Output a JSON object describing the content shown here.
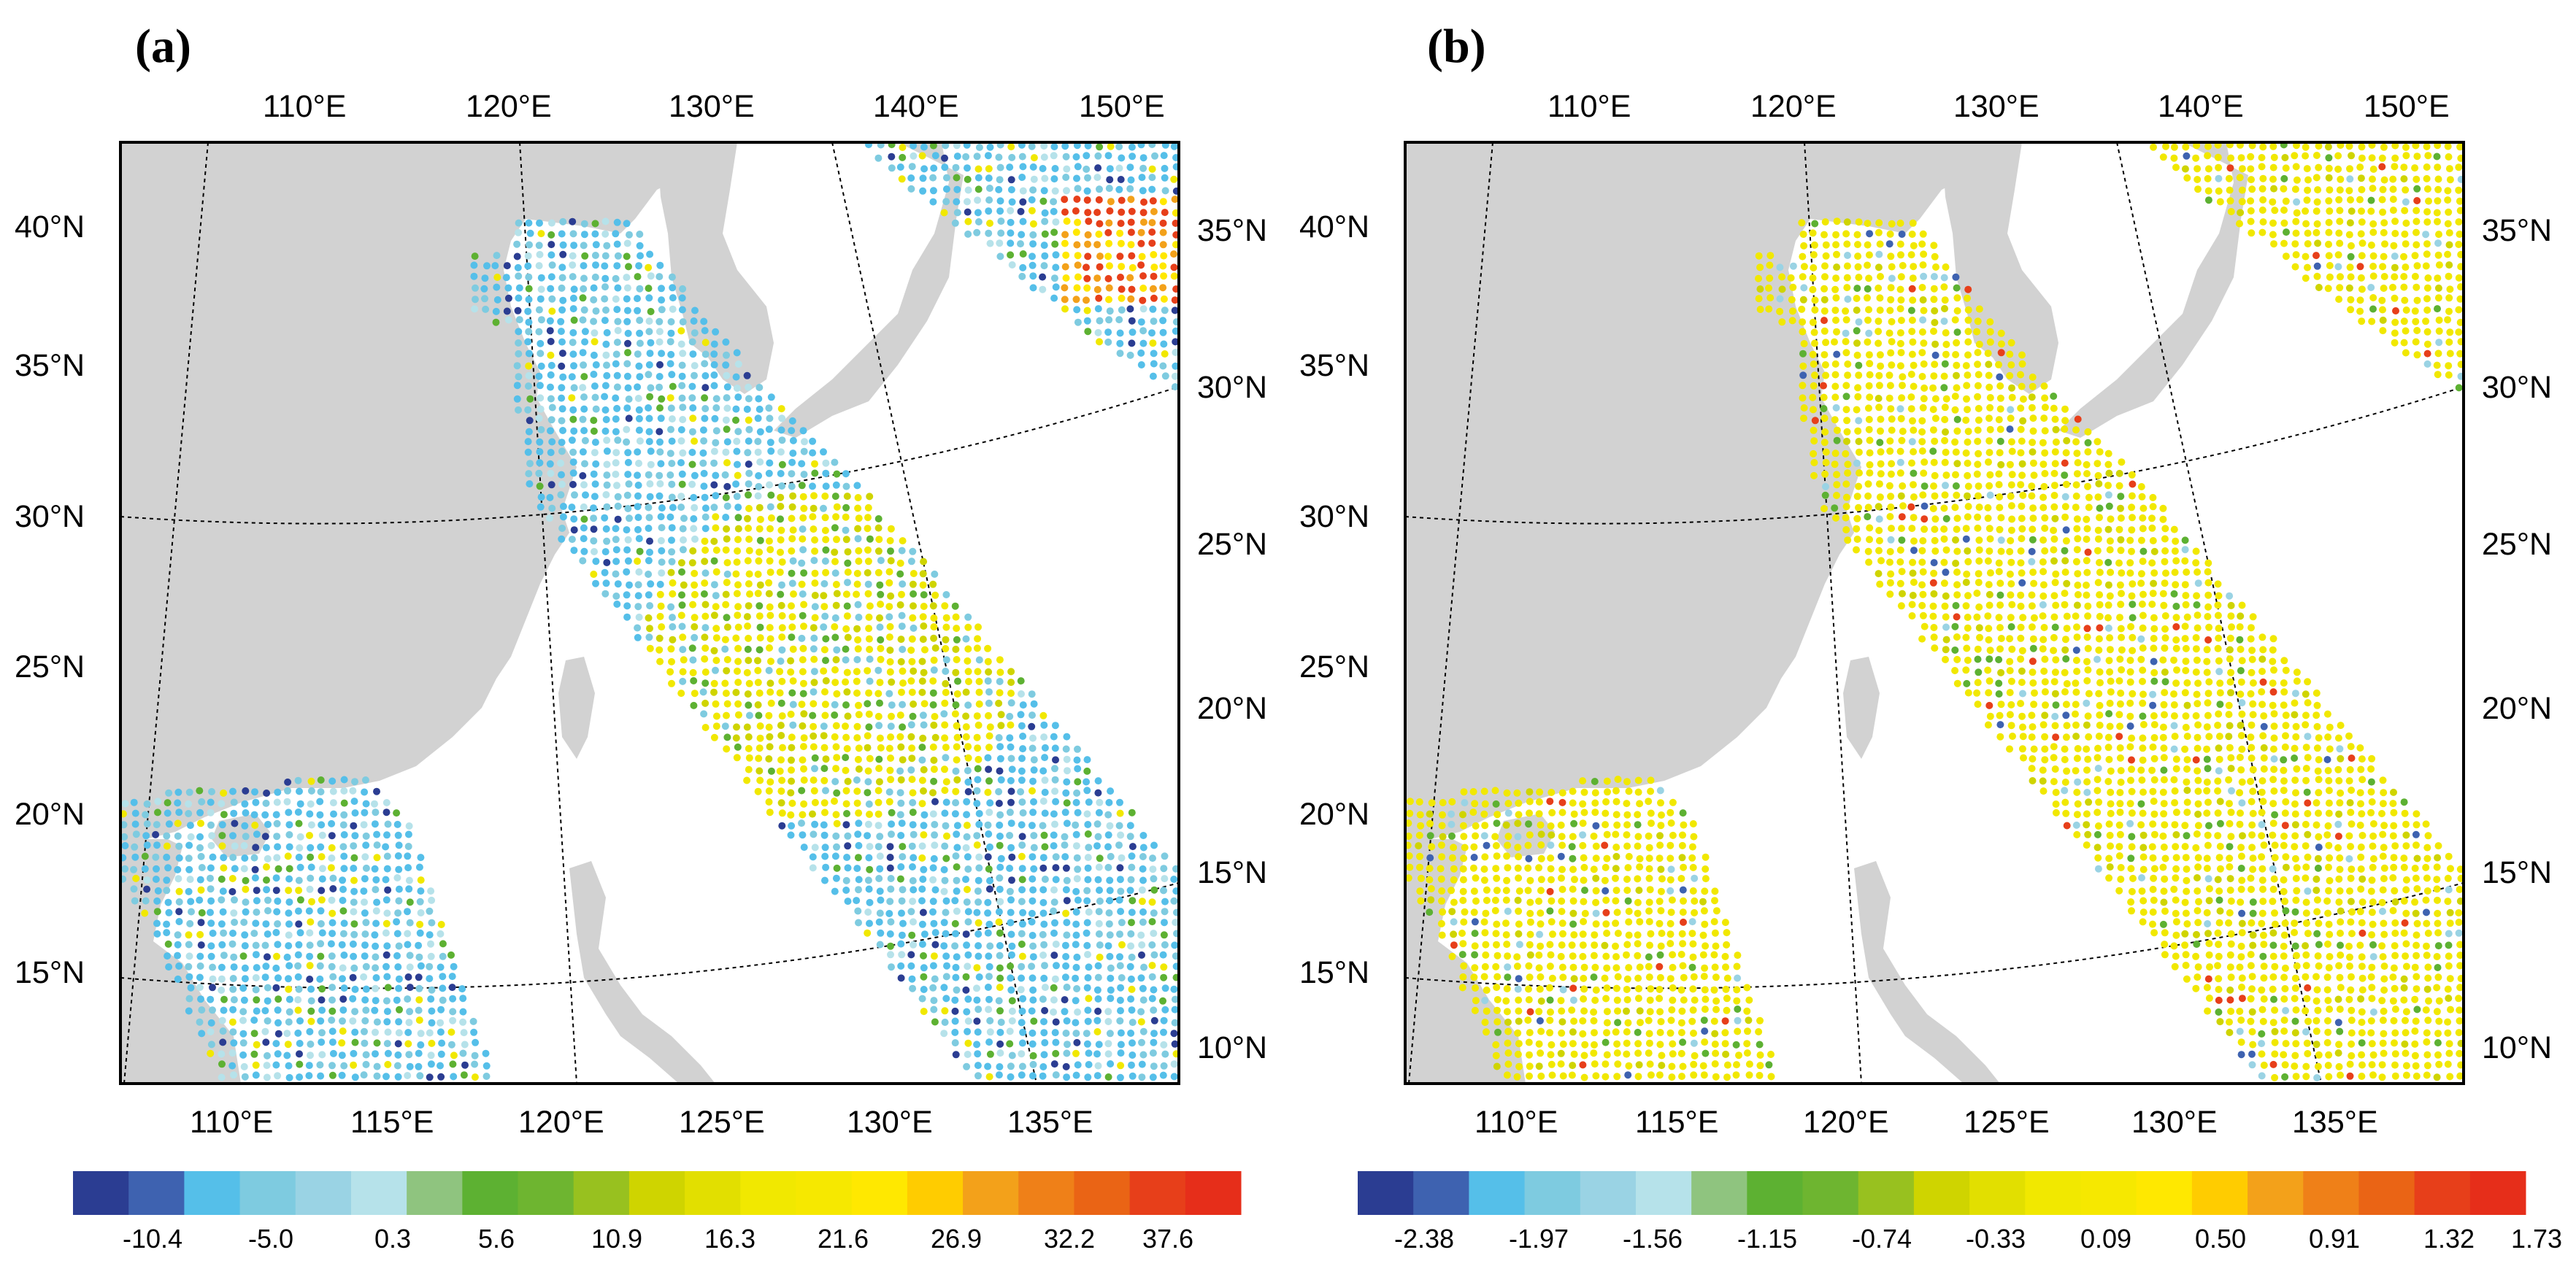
{
  "panels": [
    {
      "label": "(a)",
      "top_lon_labels": [
        "110°E",
        "120°E",
        "130°E",
        "140°E",
        "150°E"
      ],
      "bottom_lon_labels": [
        "110°E",
        "115°E",
        "120°E",
        "125°E",
        "130°E",
        "135°E"
      ],
      "left_lat_labels": [
        "40°N",
        "35°N",
        "30°N",
        "25°N",
        "20°N",
        "15°N"
      ],
      "right_lat_labels": [
        "35°N",
        "30°N",
        "25°N",
        "20°N",
        "15°N",
        "10°N"
      ],
      "colorbar_labels": [
        "-10.4",
        "-5.0",
        "0.3",
        "5.6",
        "10.9",
        "16.3",
        "21.6",
        "26.9",
        "32.2",
        "37.6"
      ]
    },
    {
      "label": "(b)",
      "top_lon_labels": [
        "110°E",
        "120°E",
        "130°E",
        "140°E",
        "150°E"
      ],
      "bottom_lon_labels": [
        "110°E",
        "115°E",
        "120°E",
        "125°E",
        "130°E",
        "135°E"
      ],
      "left_lat_labels": [
        "40°N",
        "35°N",
        "30°N",
        "25°N",
        "20°N",
        "15°N"
      ],
      "right_lat_labels": [
        "35°N",
        "30°N",
        "25°N",
        "20°N",
        "15°N",
        "10°N"
      ],
      "colorbar_labels": [
        "-2.38",
        "-1.97",
        "-1.56",
        "-1.15",
        "-0.74",
        "-0.33",
        "0.09",
        "0.50",
        "0.91",
        "1.32",
        "1.73"
      ]
    }
  ],
  "colorbar_colors": [
    "#2b3d92",
    "#3e62b0",
    "#55bfe9",
    "#7ecbe0",
    "#9ad3e4",
    "#b6e2ea",
    "#8fc47f",
    "#5db132",
    "#6eb530",
    "#98c11f",
    "#cfd400",
    "#e2df00",
    "#f1e800",
    "#f6e800",
    "#ffe800",
    "#ffcc00",
    "#f3a11a",
    "#ef8018",
    "#ea6415",
    "#e73f1a",
    "#e62e1a"
  ],
  "colors": {
    "land": "#d2d2d2",
    "ocean": "#ffffff",
    "frame": "#000000",
    "grid": "#000000"
  },
  "map_types": {
    "panel_a": "scattered swath points colored by value (cool blues dominant, yellow-green center)",
    "panel_b": "scattered swath points colored by value (yellow dominant)"
  }
}
